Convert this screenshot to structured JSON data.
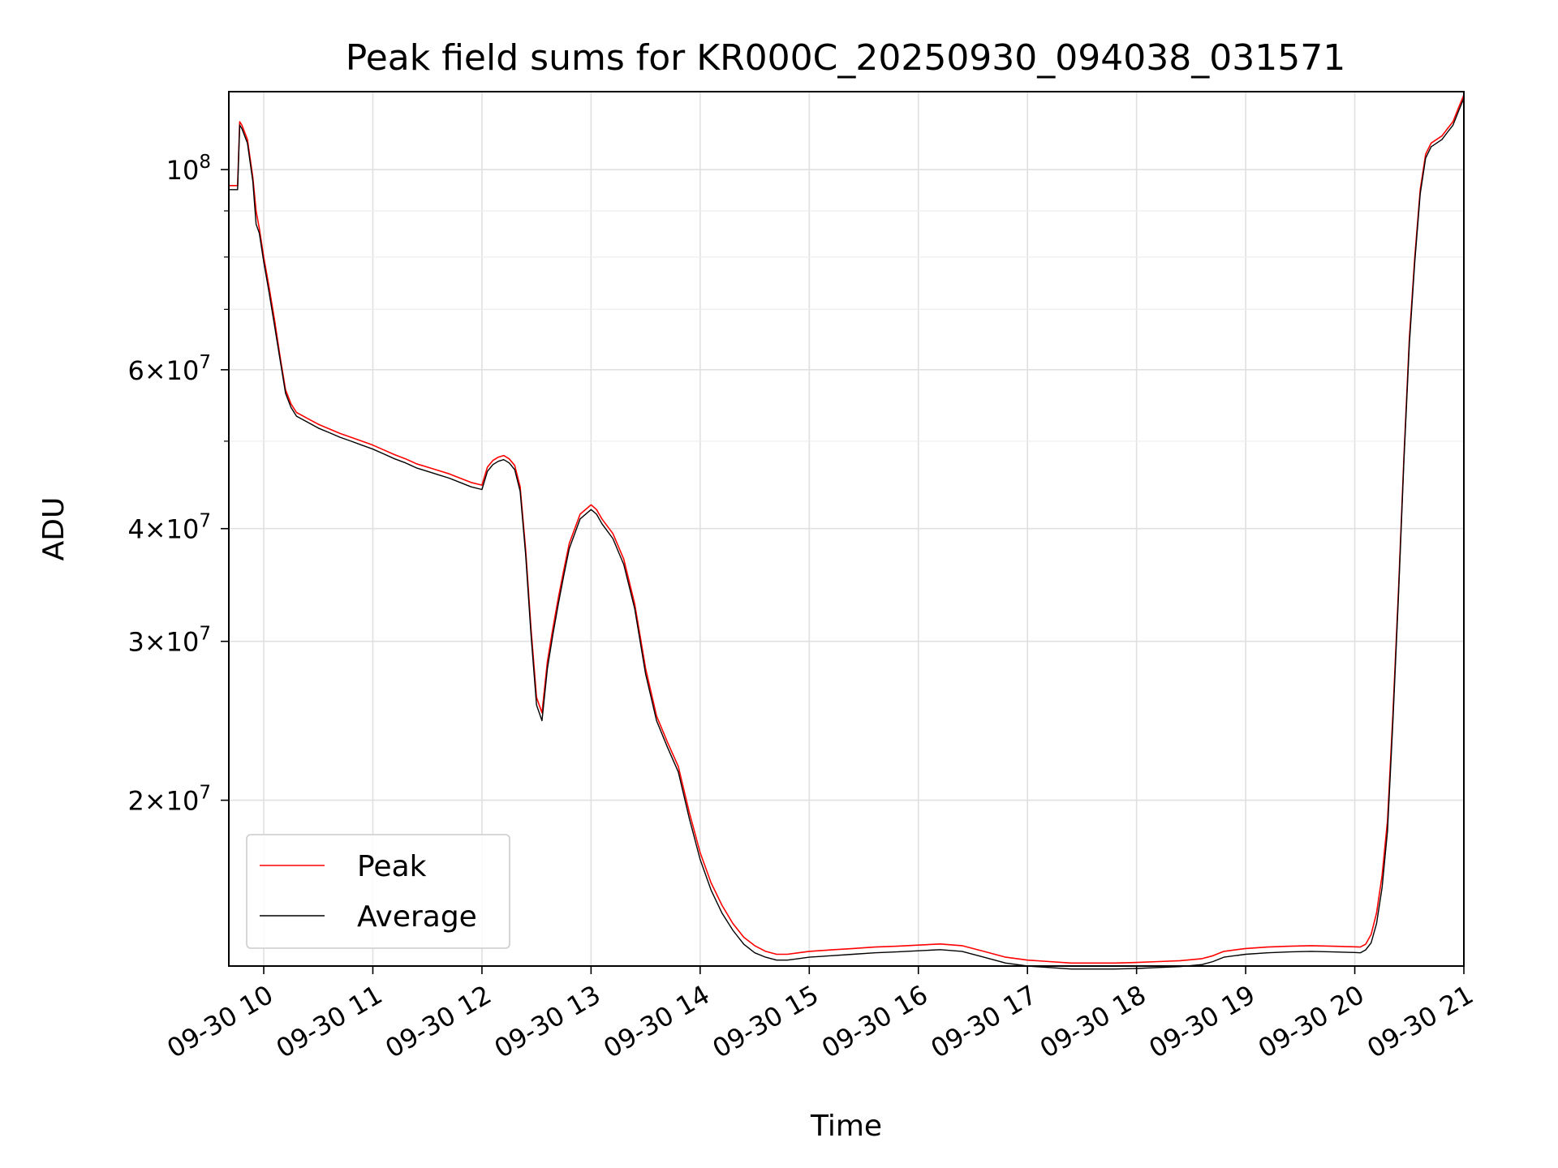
{
  "chart_data": {
    "type": "line",
    "title": "Peak field sums for KR000C_20250930_094038_031571",
    "xlabel": "Time",
    "ylabel": "ADU",
    "yscale": "log",
    "xlim": [
      9.68,
      21.0
    ],
    "ylim": [
      13100000,
      122000000
    ],
    "grid": true,
    "legend_location": "lower-left",
    "x_ticks": [
      {
        "value": 10,
        "label": "09-30 10"
      },
      {
        "value": 11,
        "label": "09-30 11"
      },
      {
        "value": 12,
        "label": "09-30 12"
      },
      {
        "value": 13,
        "label": "09-30 13"
      },
      {
        "value": 14,
        "label": "09-30 14"
      },
      {
        "value": 15,
        "label": "09-30 15"
      },
      {
        "value": 16,
        "label": "09-30 16"
      },
      {
        "value": 17,
        "label": "09-30 17"
      },
      {
        "value": 18,
        "label": "09-30 18"
      },
      {
        "value": 19,
        "label": "09-30 19"
      },
      {
        "value": 20,
        "label": "09-30 20"
      },
      {
        "value": 21,
        "label": "09-30 21"
      }
    ],
    "y_ticks": [
      {
        "value": 20000000,
        "mant": "2",
        "exp": "7"
      },
      {
        "value": 30000000,
        "mant": "3",
        "exp": "7"
      },
      {
        "value": 40000000,
        "mant": "4",
        "exp": "7"
      },
      {
        "value": 60000000,
        "mant": "6",
        "exp": "7"
      },
      {
        "value": 100000000,
        "mant": "",
        "exp": "8"
      }
    ],
    "y_minor_ticks": [
      50000000,
      70000000,
      80000000,
      90000000
    ],
    "x_unit": "hours (2025-09-30)",
    "series": [
      {
        "name": "Peak",
        "color": "#ff0000",
        "x": [
          9.68,
          9.76,
          9.78,
          9.8,
          9.85,
          9.9,
          9.93,
          9.96,
          10.0,
          10.05,
          10.1,
          10.15,
          10.2,
          10.25,
          10.3,
          10.4,
          10.5,
          10.6,
          10.7,
          10.8,
          10.9,
          11.0,
          11.1,
          11.2,
          11.3,
          11.4,
          11.5,
          11.6,
          11.7,
          11.8,
          11.9,
          12.0,
          12.05,
          12.1,
          12.15,
          12.2,
          12.25,
          12.3,
          12.35,
          12.4,
          12.45,
          12.5,
          12.55,
          12.6,
          12.65,
          12.7,
          12.75,
          12.8,
          12.9,
          13.0,
          13.05,
          13.1,
          13.2,
          13.3,
          13.4,
          13.5,
          13.6,
          13.7,
          13.8,
          13.9,
          14.0,
          14.1,
          14.2,
          14.3,
          14.4,
          14.5,
          14.6,
          14.7,
          14.8,
          14.9,
          15.0,
          15.2,
          15.4,
          15.6,
          15.8,
          16.0,
          16.2,
          16.4,
          16.6,
          16.8,
          17.0,
          17.2,
          17.4,
          17.6,
          17.8,
          18.0,
          18.2,
          18.4,
          18.6,
          18.7,
          18.8,
          19.0,
          19.2,
          19.4,
          19.6,
          19.8,
          20.0,
          20.05,
          20.1,
          20.15,
          20.2,
          20.25,
          20.3,
          20.35,
          20.4,
          20.45,
          20.5,
          20.55,
          20.6,
          20.65,
          20.7,
          20.75,
          20.8,
          20.85,
          20.9,
          20.95,
          21.0
        ],
        "values": [
          96000000,
          96000000,
          113000000,
          112000000,
          108000000,
          98000000,
          90000000,
          86000000,
          80000000,
          74000000,
          68000000,
          62000000,
          57000000,
          55000000,
          53800000,
          53000000,
          52200000,
          51600000,
          51000000,
          50500000,
          50000000,
          49500000,
          48900000,
          48300000,
          47800000,
          47200000,
          46800000,
          46400000,
          46000000,
          45500000,
          45000000,
          44700000,
          46800000,
          47600000,
          48000000,
          48200000,
          47800000,
          47000000,
          44500000,
          38000000,
          31000000,
          26000000,
          25000000,
          28500000,
          31000000,
          33500000,
          36000000,
          38500000,
          41500000,
          42500000,
          42000000,
          41000000,
          39500000,
          37000000,
          33000000,
          28000000,
          24800000,
          23200000,
          21800000,
          19400000,
          17500000,
          16200000,
          15300000,
          14600000,
          14100000,
          13800000,
          13600000,
          13500000,
          13500000,
          13550000,
          13600000,
          13650000,
          13700000,
          13750000,
          13780000,
          13820000,
          13860000,
          13800000,
          13600000,
          13400000,
          13300000,
          13250000,
          13200000,
          13200000,
          13200000,
          13220000,
          13250000,
          13280000,
          13350000,
          13450000,
          13600000,
          13700000,
          13750000,
          13780000,
          13800000,
          13780000,
          13760000,
          13750000,
          13850000,
          14200000,
          15000000,
          16500000,
          19000000,
          25000000,
          34000000,
          48000000,
          65000000,
          80000000,
          95000000,
          104000000,
          107000000,
          108000000,
          109000000,
          111000000,
          113000000,
          117000000,
          121000000
        ]
      },
      {
        "name": "Average",
        "color": "#000000",
        "x": [
          9.68,
          9.76,
          9.78,
          9.8,
          9.85,
          9.9,
          9.93,
          9.96,
          10.0,
          10.05,
          10.1,
          10.15,
          10.2,
          10.25,
          10.3,
          10.4,
          10.5,
          10.6,
          10.7,
          10.8,
          10.9,
          11.0,
          11.1,
          11.2,
          11.3,
          11.4,
          11.5,
          11.6,
          11.7,
          11.8,
          11.9,
          12.0,
          12.05,
          12.1,
          12.15,
          12.2,
          12.25,
          12.3,
          12.35,
          12.4,
          12.45,
          12.5,
          12.55,
          12.6,
          12.65,
          12.7,
          12.75,
          12.8,
          12.9,
          13.0,
          13.05,
          13.1,
          13.2,
          13.3,
          13.4,
          13.5,
          13.6,
          13.7,
          13.8,
          13.9,
          14.0,
          14.1,
          14.2,
          14.3,
          14.4,
          14.5,
          14.6,
          14.7,
          14.8,
          14.9,
          15.0,
          15.2,
          15.4,
          15.6,
          15.8,
          16.0,
          16.2,
          16.4,
          16.6,
          16.8,
          17.0,
          17.2,
          17.4,
          17.6,
          17.8,
          18.0,
          18.2,
          18.4,
          18.6,
          18.7,
          18.8,
          19.0,
          19.2,
          19.4,
          19.6,
          19.8,
          20.0,
          20.05,
          20.1,
          20.15,
          20.2,
          20.25,
          20.3,
          20.35,
          20.4,
          20.45,
          20.5,
          20.55,
          20.6,
          20.65,
          20.7,
          20.75,
          20.8,
          20.85,
          20.9,
          20.95,
          21.0
        ],
        "values": [
          95000000,
          95000000,
          112000000,
          111000000,
          107000000,
          97000000,
          87000000,
          85000000,
          79000000,
          73000000,
          67000000,
          61500000,
          56500000,
          54500000,
          53300000,
          52500000,
          51700000,
          51100000,
          50500000,
          50000000,
          49500000,
          49000000,
          48400000,
          47800000,
          47300000,
          46700000,
          46300000,
          45900000,
          45500000,
          45000000,
          44500000,
          44200000,
          46300000,
          47100000,
          47500000,
          47700000,
          47300000,
          46500000,
          44000000,
          37500000,
          30500000,
          25500000,
          24500000,
          28000000,
          30500000,
          33000000,
          35500000,
          38000000,
          41000000,
          42000000,
          41500000,
          40500000,
          39000000,
          36500000,
          32600000,
          27600000,
          24500000,
          22900000,
          21500000,
          19100000,
          17200000,
          15900000,
          15000000,
          14350000,
          13850000,
          13550000,
          13400000,
          13300000,
          13300000,
          13350000,
          13400000,
          13450000,
          13500000,
          13550000,
          13580000,
          13620000,
          13660000,
          13600000,
          13400000,
          13200000,
          13100000,
          13050000,
          13000000,
          13000000,
          13000000,
          13020000,
          13050000,
          13080000,
          13150000,
          13250000,
          13400000,
          13500000,
          13550000,
          13580000,
          13600000,
          13580000,
          13560000,
          13550000,
          13650000,
          13900000,
          14600000,
          16000000,
          18500000,
          24500000,
          33500000,
          47500000,
          64000000,
          79000000,
          94000000,
          103000000,
          106000000,
          107000000,
          108000000,
          110000000,
          112000000,
          116000000,
          120000000
        ]
      }
    ]
  }
}
